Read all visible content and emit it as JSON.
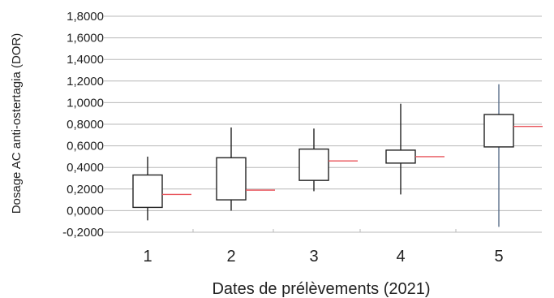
{
  "chart_data": {
    "type": "boxplot",
    "xlabel": "Dates de prélèvements (2021)",
    "ylabel": "Dosage AC anti-ostertagia (DOR)",
    "ylim": [
      -0.2,
      1.8
    ],
    "ytick_values": [
      -0.2,
      0.0,
      0.2,
      0.4,
      0.6,
      0.8,
      1.0,
      1.2,
      1.4,
      1.6,
      1.8
    ],
    "ytick_labels": [
      "-0,2000",
      "0,0000",
      "0,2000",
      "0,4000",
      "0,6000",
      "0,8000",
      "1,0000",
      "1,2000",
      "1,4000",
      "1,6000",
      "1,8000"
    ],
    "categories": [
      "1",
      "2",
      "3",
      "4",
      "5"
    ],
    "series": [
      {
        "category": "1",
        "min": -0.09,
        "q1": 0.03,
        "q3": 0.33,
        "max": 0.5,
        "marker": 0.15
      },
      {
        "category": "2",
        "min": 0.0,
        "q1": 0.1,
        "q3": 0.49,
        "max": 0.77,
        "marker": 0.19
      },
      {
        "category": "3",
        "min": 0.18,
        "q1": 0.28,
        "q3": 0.57,
        "max": 0.76,
        "marker": 0.46
      },
      {
        "category": "4",
        "min": 0.15,
        "q1": 0.44,
        "q3": 0.56,
        "max": 0.99,
        "marker": 0.5
      },
      {
        "category": "5",
        "min": -0.15,
        "q1": 0.59,
        "q3": 0.89,
        "max": 1.17,
        "marker": 0.78
      }
    ],
    "grid": true,
    "colors": {
      "box": "#222222",
      "whisker": "#222222",
      "whisker_long": "#5a6f8a",
      "marker": "#e8535a",
      "grid": "#b8b8b8"
    }
  }
}
